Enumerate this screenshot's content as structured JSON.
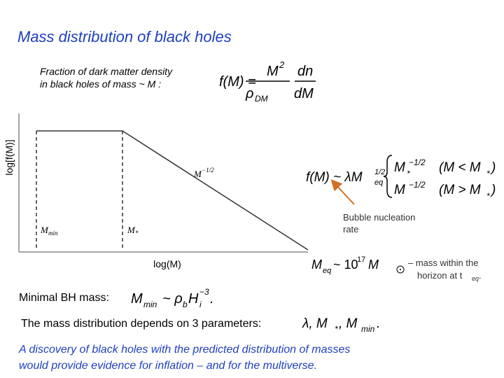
{
  "title": "Mass distribution of black holes",
  "definition": {
    "lines": [
      "Fraction of dark matter density",
      "in black holes of mass ~ M :"
    ],
    "formula": {
      "lhs": "f(M) =",
      "num": "M",
      "num_sup": "2",
      "den": "ρ",
      "den_sub": "DM",
      "dnum": "dn",
      "dden": "dM"
    }
  },
  "plot": {
    "y_axis_label": "log[f(M)]",
    "x_axis_label": "log(M)",
    "m_min": "M",
    "m_min_sub": "min",
    "m_star": "M",
    "m_star_sub": "*",
    "slope": "M",
    "slope_sup": "−1/2"
  },
  "piecewise": {
    "lhs": "f(M) ~ λM",
    "lhs_sup": "1/2",
    "lhs_sub": "eq",
    "rows": [
      {
        "base": "M",
        "sub": "*",
        "sup": "−1/2",
        "cond": "(M < M",
        "cond_sub": "*",
        "cond_end": ")"
      },
      {
        "base": "M",
        "sub": "",
        "sup": "−1/2",
        "cond": "(M > M",
        "cond_sub": "*",
        "cond_end": ")"
      }
    ]
  },
  "annotation": [
    "Bubble nucleation",
    "rate"
  ],
  "meq": {
    "base": "M",
    "sub": "eq",
    "mid": "~ 10",
    "sup": "17",
    "msun": "M",
    "note": [
      "– mass within the",
      "horizon at t"
    ],
    "note_sub": "eq",
    "note_end": "."
  },
  "minimal": {
    "label": "Minimal BH mass:",
    "m": "M",
    "m_sub": "min",
    "mid": "~ ρ",
    "rho_sub": "b",
    "h": "H",
    "h_sub": "i",
    "h_sup": "−3",
    "end": "."
  },
  "parameters": {
    "label": "The mass distribution depends on 3 parameters:",
    "p1": "λ, M",
    "p1_sub": "*",
    "p2": ", M",
    "p2_sub": "min",
    "end": "."
  },
  "conclusion": [
    "A discovery of black holes with the predicted distribution of masses",
    "would provide evidence for inflation – and for the multiverse."
  ]
}
